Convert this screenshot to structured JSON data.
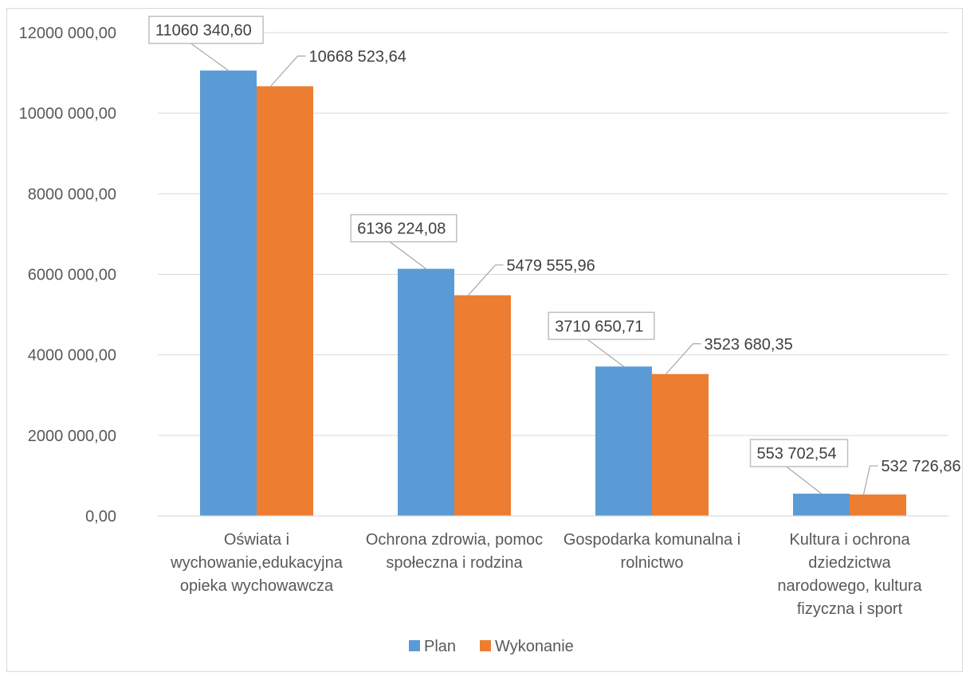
{
  "chart_data": {
    "type": "bar",
    "title": "",
    "xlabel": "",
    "ylabel": "",
    "categories": [
      [
        "Oświata i",
        "wychowanie,edukacyjna",
        "opieka wychowawcza"
      ],
      [
        "Ochrona zdrowia, pomoc",
        "społeczna i rodzina"
      ],
      [
        "Gospodarka komunalna i",
        "rolnictwo"
      ],
      [
        "Kultura i ochrona",
        "dziedzictwa",
        "narodowego, kultura",
        "fizyczna i sport"
      ]
    ],
    "series": [
      {
        "name": "Plan",
        "color": "#5b9bd5",
        "values": [
          11060340.6,
          6136224.08,
          3710650.71,
          553702.54
        ],
        "labels": [
          "11060 340,60",
          "6136 224,08",
          "3710 650,71",
          "553 702,54"
        ]
      },
      {
        "name": "Wykonanie",
        "color": "#ed7d31",
        "values": [
          10668523.64,
          5479555.96,
          3523680.35,
          532726.86
        ],
        "labels": [
          "10668 523,64",
          "5479 555,96",
          "3523 680,35",
          "532 726,86"
        ]
      }
    ],
    "ylim": [
      0,
      12000000
    ],
    "yticks": [
      0,
      2000000,
      4000000,
      6000000,
      8000000,
      10000000,
      12000000
    ],
    "ytick_labels": [
      "0,00",
      "2000 000,00",
      "4000 000,00",
      "6000 000,00",
      "8000 000,00",
      "10000 000,00",
      "12000 000,00"
    ],
    "grid": true,
    "legend_position": "bottom"
  }
}
